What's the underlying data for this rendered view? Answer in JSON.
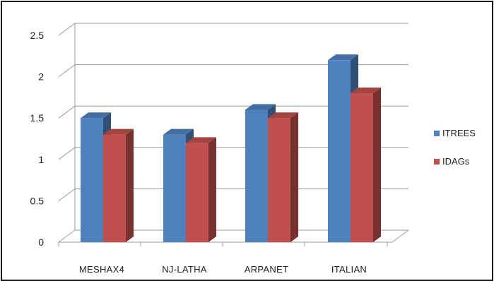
{
  "chart_data": {
    "type": "bar",
    "style": "3d-clustered-column",
    "categories": [
      "MESHAX4",
      "NJ-LATHA",
      "ARPANET",
      "ITALIAN"
    ],
    "series": [
      {
        "name": "ITREES",
        "values": [
          1.5,
          1.3,
          1.6,
          2.2
        ],
        "color": "#4f81bd"
      },
      {
        "name": "IDAGs",
        "values": [
          1.3,
          1.2,
          1.5,
          1.8
        ],
        "color": "#c0504d"
      }
    ],
    "ylim": [
      0,
      2.5
    ],
    "yticks": [
      "0",
      "0.5",
      "1",
      "1.5",
      "2",
      "2.5"
    ],
    "grid": true,
    "legend_position": "right"
  }
}
